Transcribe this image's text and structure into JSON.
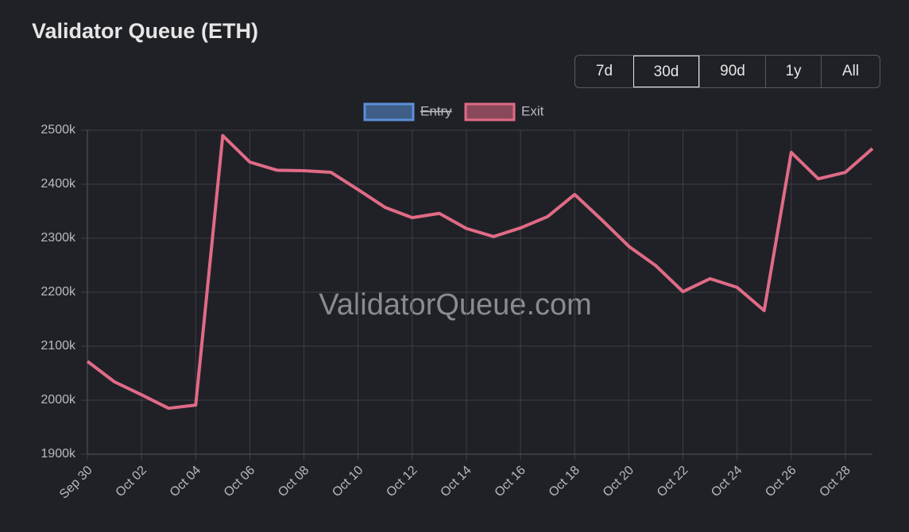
{
  "chart_data": {
    "type": "line",
    "title": "Validator Queue (ETH)",
    "range_buttons": [
      "7d",
      "30d",
      "90d",
      "1y",
      "All"
    ],
    "active_button": "30d",
    "watermark": "ValidatorQueue.com",
    "categories": [
      "Sep 30",
      null,
      "Oct 02",
      null,
      "Oct 04",
      null,
      "Oct 06",
      null,
      "Oct 08",
      null,
      "Oct 10",
      null,
      "Oct 12",
      null,
      "Oct 14",
      null,
      "Oct 16",
      null,
      "Oct 18",
      null,
      "Oct 20",
      null,
      "Oct 22",
      null,
      "Oct 24",
      null,
      "Oct 26",
      null,
      "Oct 28",
      null
    ],
    "series": [
      {
        "name": "Entry",
        "color": "#5b8fd9",
        "hidden": true,
        "values": [
          null,
          null,
          null,
          null,
          null,
          null,
          null,
          null,
          null,
          null,
          null,
          null,
          null,
          null,
          null,
          null,
          null,
          null,
          null,
          null,
          null,
          null,
          null,
          null,
          null,
          null,
          null,
          null,
          null,
          null
        ]
      },
      {
        "name": "Exit",
        "color": "#e06b86",
        "hidden": false,
        "values": [
          2072000,
          2034000,
          2010000,
          1985000,
          1991000,
          2490000,
          2441000,
          2426000,
          2425000,
          2422000,
          2390000,
          2357000,
          2338000,
          2346000,
          2318000,
          2303000,
          2319000,
          2340000,
          2381000,
          2334000,
          2285000,
          2249000,
          2201000,
          2225000,
          2209000,
          2166000,
          2459000,
          2410000,
          2422000,
          2466000
        ]
      }
    ],
    "ylim": [
      1900000,
      2500000
    ],
    "yticks": [
      {
        "value": 1900000,
        "label": "1900k"
      },
      {
        "value": 2000000,
        "label": "2000k"
      },
      {
        "value": 2100000,
        "label": "2100k"
      },
      {
        "value": 2200000,
        "label": "2200k"
      },
      {
        "value": 2300000,
        "label": "2300k"
      },
      {
        "value": 2400000,
        "label": "2400k"
      },
      {
        "value": 2500000,
        "label": "2500k"
      }
    ],
    "grid": true,
    "legend": "top"
  }
}
